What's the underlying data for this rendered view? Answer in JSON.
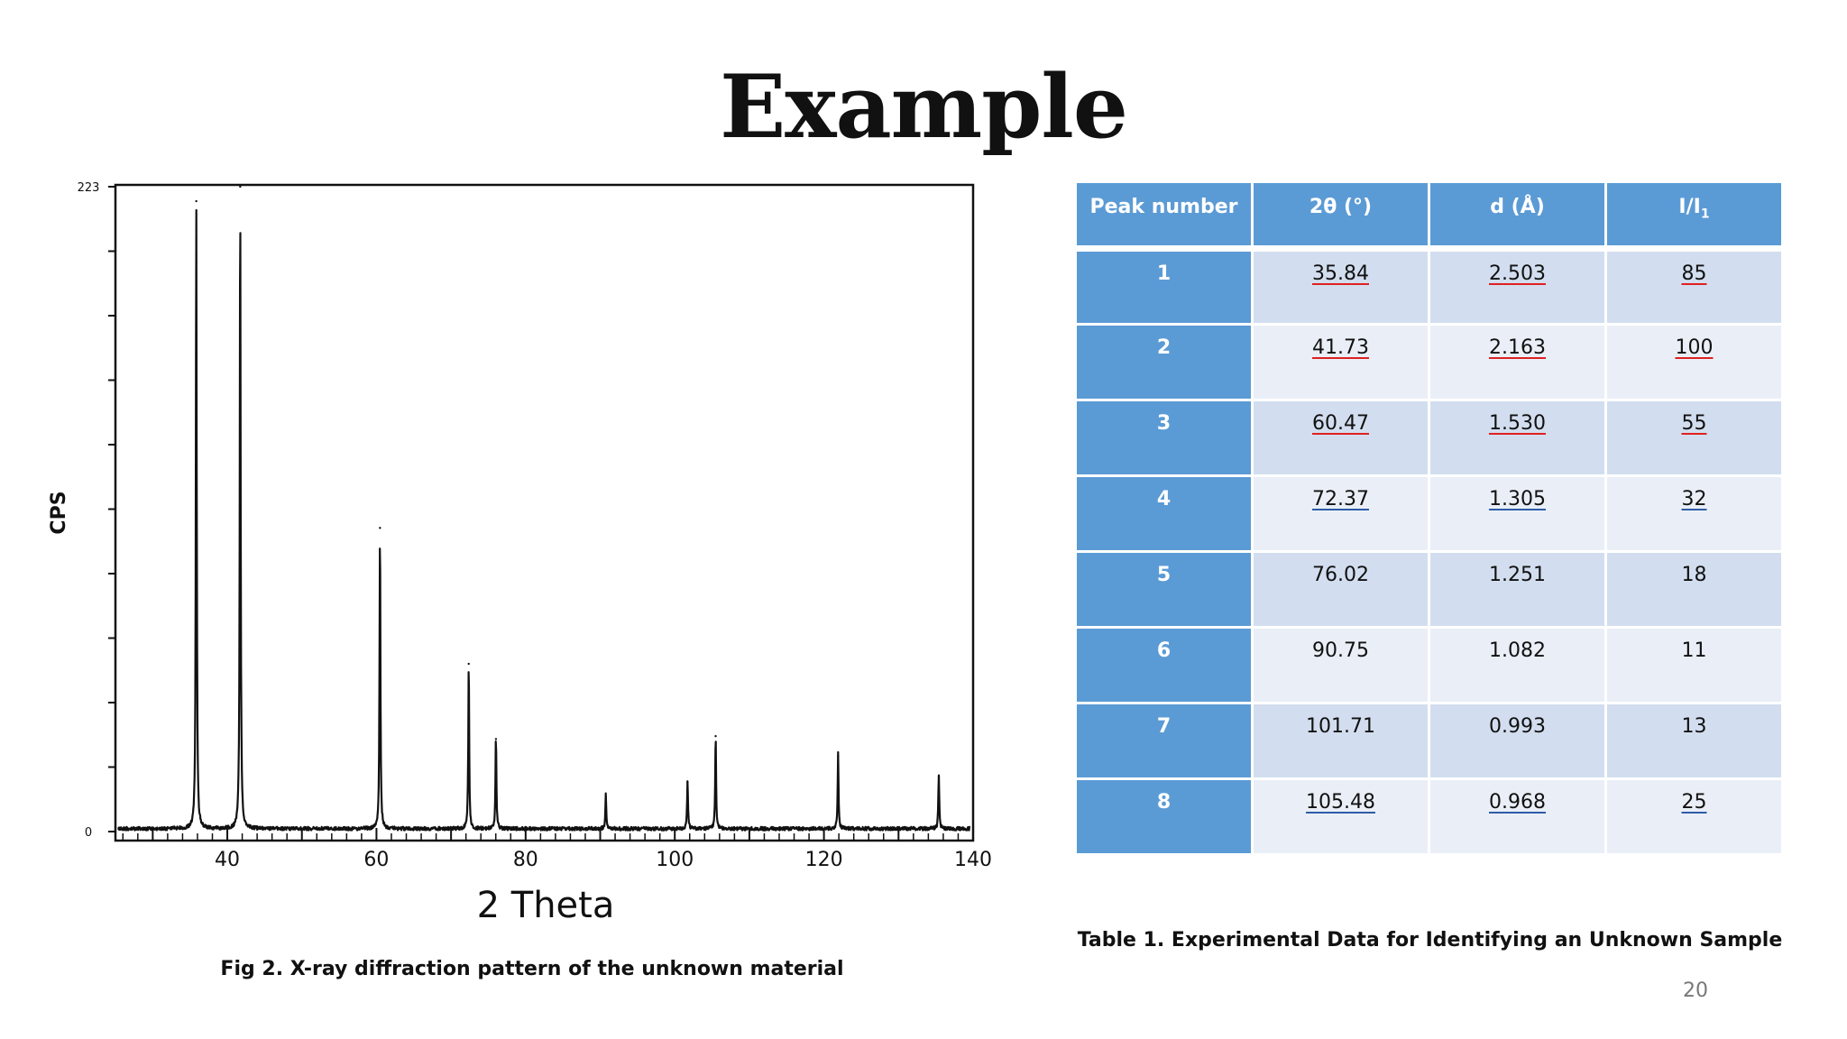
{
  "slide": {
    "title": "Example",
    "page_number": "20"
  },
  "figure": {
    "caption": "Fig 2. X-ray diffraction pattern of the unknown material"
  },
  "chart_data": {
    "type": "line",
    "xlabel": "2 Theta",
    "ylabel": "CPS",
    "xlim": [
      25,
      140
    ],
    "ylim": [
      0,
      223
    ],
    "x_ticks": [
      40,
      60,
      80,
      100,
      120,
      140
    ],
    "y_tick_labels": [
      "0",
      "223"
    ],
    "peaks": [
      {
        "x": 35.84,
        "y": 218
      },
      {
        "x": 41.73,
        "y": 223
      },
      {
        "x": 60.47,
        "y": 105
      },
      {
        "x": 72.37,
        "y": 58
      },
      {
        "x": 76.02,
        "y": 32
      },
      {
        "x": 90.75,
        "y": 12
      },
      {
        "x": 101.71,
        "y": 17
      },
      {
        "x": 105.48,
        "y": 33
      },
      {
        "x": 121.9,
        "y": 26
      },
      {
        "x": 135.4,
        "y": 19
      }
    ]
  },
  "table": {
    "caption": "Table 1. Experimental Data for Identifying an Unknown Sample",
    "headers": {
      "peak": "Peak number",
      "two_theta": "2θ (°)",
      "d": "d (Å)",
      "intensity_main": "I/I",
      "intensity_sub": "1"
    },
    "rows": [
      {
        "peak": "1",
        "two_theta": "35.84",
        "d": "2.503",
        "i": "85"
      },
      {
        "peak": "2",
        "two_theta": "41.73",
        "d": "2.163",
        "i": "100"
      },
      {
        "peak": "3",
        "two_theta": "60.47",
        "d": "1.530",
        "i": "55"
      },
      {
        "peak": "4",
        "two_theta": "72.37",
        "d": "1.305",
        "i": "32"
      },
      {
        "peak": "5",
        "two_theta": "76.02",
        "d": "1.251",
        "i": "18"
      },
      {
        "peak": "6",
        "two_theta": "90.75",
        "d": "1.082",
        "i": "11"
      },
      {
        "peak": "7",
        "two_theta": "101.71",
        "d": "0.993",
        "i": "13"
      },
      {
        "peak": "8",
        "two_theta": "105.48",
        "d": "0.968",
        "i": "25"
      }
    ]
  }
}
